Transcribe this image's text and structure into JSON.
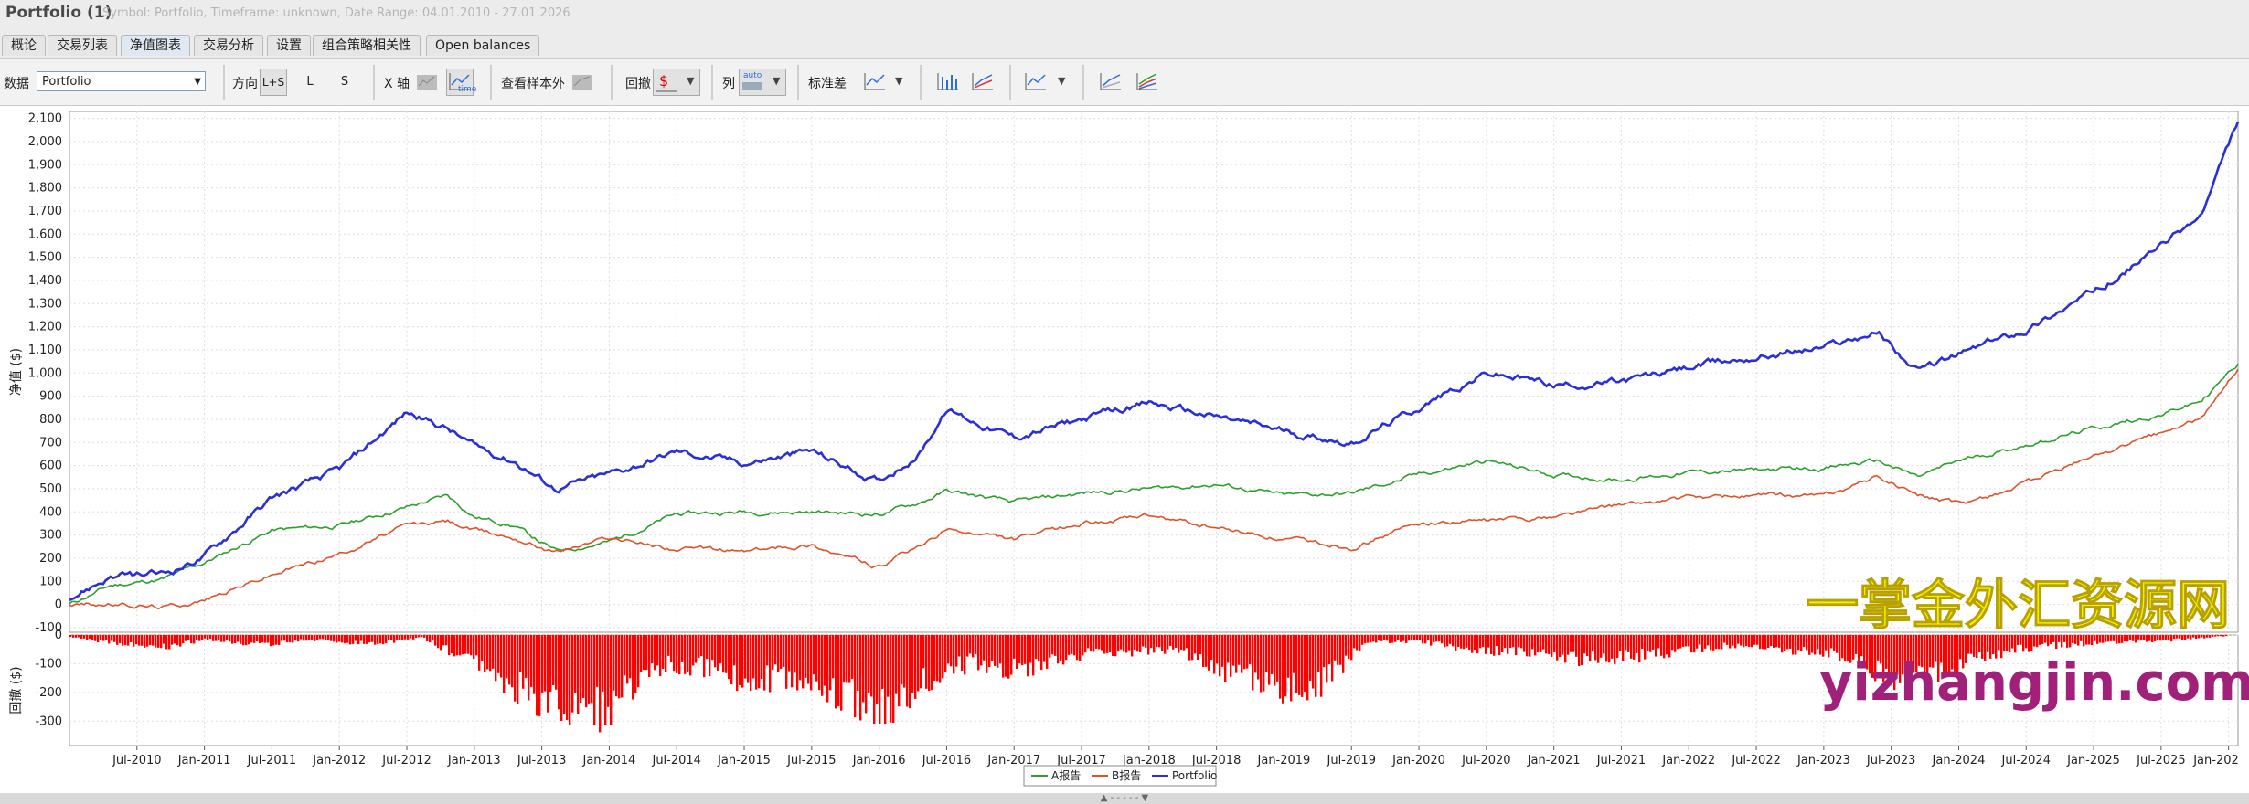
{
  "window": {
    "title": "Portfolio (1)",
    "subtitle": "Symbol: Portfolio, Timeframe: unknown, Date Range: 04.01.2010 - 27.01.2026"
  },
  "tabs": [
    "概论",
    "交易列表",
    "净值图表",
    "交易分析",
    "设置",
    "组合策略相关性",
    "Open balances"
  ],
  "active_tab": 2,
  "toolbar": {
    "data_label": "数据",
    "data_value": "Portfolio",
    "direction_label": "方向",
    "direction_options": [
      "L+S",
      "L",
      "S"
    ],
    "xaxis_label": "X 轴",
    "xaxis_time_label": "time",
    "oos_label": "查看样本外",
    "drawdown_label": "回撤",
    "column_label": "列",
    "column_auto_label": "auto",
    "stddev_label": "标准差",
    "dropdown_glyph": "▼"
  },
  "footer": {
    "glyph": "▲ - - - - - ▼"
  },
  "watermark": {
    "line1": "一掌金外汇资源网",
    "line2": "yizhangjin.com",
    "color1": "#f2f200",
    "color2": "#a0207a"
  },
  "chart_data": {
    "type": "line",
    "x_ticks": [
      "Jul-2010",
      "Jan-2011",
      "Jul-2011",
      "Jan-2012",
      "Jul-2012",
      "Jan-2013",
      "Jul-2013",
      "Jan-2014",
      "Jul-2014",
      "Jan-2015",
      "Jul-2015",
      "Jan-2016",
      "Jul-2016",
      "Jan-2017",
      "Jul-2017",
      "Jan-2018",
      "Jul-2018",
      "Jan-2019",
      "Jul-2019",
      "Jan-2020",
      "Jul-2020",
      "Jan-2021",
      "Jul-2021",
      "Jan-2022",
      "Jul-2022",
      "Jan-2023",
      "Jul-2023",
      "Jan-2024",
      "Jul-2024",
      "Jan-2025",
      "Jul-2025",
      "Jan-202"
    ],
    "equity": {
      "ylabel": "净值 ($)",
      "y_ticks": [
        -100,
        0,
        100,
        200,
        300,
        400,
        500,
        600,
        700,
        800,
        900,
        1000,
        1100,
        1200,
        1300,
        1400,
        1500,
        1600,
        1700,
        1800,
        1900,
        2000,
        2100
      ],
      "ylim": [
        -120,
        2130
      ],
      "series": [
        {
          "name": "A报告",
          "color": "#2ca02c",
          "x": [
            2010.0,
            2010.3,
            2010.7,
            2011.0,
            2011.5,
            2012.0,
            2012.5,
            2012.8,
            2013.0,
            2013.3,
            2013.6,
            2014.0,
            2014.5,
            2015.0,
            2015.5,
            2016.0,
            2016.3,
            2016.5,
            2017.0,
            2017.5,
            2018.0,
            2018.5,
            2019.0,
            2019.5,
            2020.0,
            2020.5,
            2021.0,
            2021.5,
            2022.0,
            2022.5,
            2023.0,
            2023.4,
            2023.7,
            2024.0,
            2024.5,
            2025.0,
            2025.5,
            2025.8,
            2026.07
          ],
          "values": [
            0,
            80,
            110,
            180,
            320,
            340,
            420,
            470,
            380,
            340,
            230,
            270,
            390,
            400,
            400,
            390,
            440,
            490,
            440,
            480,
            500,
            520,
            470,
            480,
            560,
            620,
            560,
            540,
            570,
            580,
            590,
            620,
            550,
            620,
            690,
            760,
            820,
            880,
            1040
          ]
        },
        {
          "name": "B报告",
          "color": "#e0522a",
          "x": [
            2010.0,
            2010.3,
            2010.7,
            2011.0,
            2011.5,
            2012.0,
            2012.5,
            2012.8,
            2013.0,
            2013.3,
            2013.6,
            2014.0,
            2014.5,
            2015.0,
            2015.5,
            2016.0,
            2016.3,
            2016.5,
            2017.0,
            2017.5,
            2018.0,
            2018.5,
            2019.0,
            2019.5,
            2020.0,
            2020.5,
            2021.0,
            2021.5,
            2022.0,
            2022.5,
            2023.0,
            2023.4,
            2023.7,
            2024.0,
            2024.5,
            2025.0,
            2025.5,
            2025.8,
            2026.07
          ],
          "values": [
            0,
            0,
            -10,
            20,
            130,
            220,
            340,
            360,
            320,
            290,
            230,
            290,
            240,
            230,
            260,
            160,
            250,
            320,
            280,
            350,
            380,
            330,
            280,
            250,
            350,
            360,
            380,
            430,
            460,
            470,
            470,
            550,
            470,
            430,
            520,
            640,
            740,
            800,
            1020
          ]
        },
        {
          "name": "Portfolio",
          "color": "#2b2fd8",
          "x": [
            2010.0,
            2010.3,
            2010.7,
            2011.0,
            2011.5,
            2012.0,
            2012.5,
            2012.8,
            2013.0,
            2013.3,
            2013.6,
            2014.0,
            2014.5,
            2015.0,
            2015.5,
            2016.0,
            2016.3,
            2016.5,
            2017.0,
            2017.5,
            2018.0,
            2018.5,
            2019.0,
            2019.5,
            2020.0,
            2020.5,
            2021.0,
            2021.5,
            2022.0,
            2022.5,
            2023.0,
            2023.4,
            2023.7,
            2024.0,
            2024.5,
            2025.0,
            2025.5,
            2025.8,
            2026.07
          ],
          "values": [
            30,
            120,
            130,
            210,
            460,
            580,
            830,
            760,
            680,
            620,
            500,
            560,
            660,
            610,
            660,
            530,
            660,
            840,
            720,
            800,
            870,
            810,
            750,
            700,
            850,
            1000,
            950,
            960,
            1020,
            1070,
            1110,
            1180,
            1000,
            1080,
            1190,
            1350,
            1550,
            1680,
            2080
          ]
        }
      ]
    },
    "drawdown": {
      "ylabel": "回撤 ($)",
      "y_ticks": [
        -300,
        -200,
        -100,
        0
      ],
      "ylim": [
        -385,
        0
      ],
      "color": "#ff0000",
      "x": [
        2010.0,
        2010.3,
        2010.7,
        2011.0,
        2011.4,
        2011.8,
        2012.2,
        2012.6,
        2013.0,
        2013.4,
        2013.8,
        2014.0,
        2014.4,
        2014.8,
        2015.0,
        2015.3,
        2015.6,
        2016.0,
        2016.3,
        2016.7,
        2017.0,
        2017.4,
        2017.8,
        2018.2,
        2018.6,
        2019.0,
        2019.3,
        2019.6,
        2020.0,
        2020.4,
        2020.8,
        2021.2,
        2021.6,
        2022.0,
        2022.4,
        2022.8,
        2023.2,
        2023.6,
        2024.0,
        2024.4,
        2024.8,
        2025.2,
        2025.6,
        2026.07
      ],
      "values": [
        -10,
        -30,
        -50,
        -20,
        -40,
        -20,
        -40,
        -10,
        -120,
        -250,
        -340,
        -300,
        -120,
        -140,
        -200,
        -170,
        -220,
        -320,
        -200,
        -110,
        -150,
        -90,
        -70,
        -60,
        -160,
        -220,
        -200,
        -30,
        -30,
        -60,
        -80,
        -100,
        -90,
        -60,
        -40,
        -70,
        -90,
        -220,
        -120,
        -60,
        -40,
        -30,
        -20,
        0
      ]
    }
  }
}
